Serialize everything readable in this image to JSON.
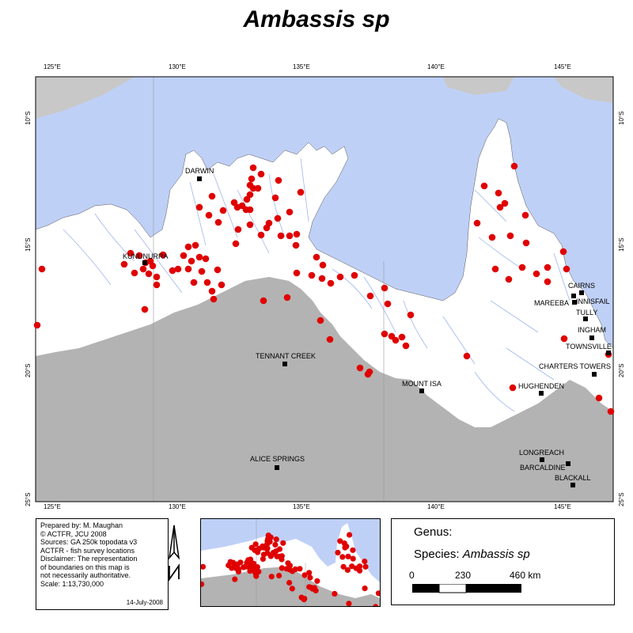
{
  "title": "Ambassis sp",
  "lon_ticks": [
    "125°E",
    "130°E",
    "135°E",
    "140°E",
    "145°E"
  ],
  "lat_ticks": [
    "10°S",
    "15°S",
    "20°S",
    "25°S"
  ],
  "towns": [
    {
      "name": "DARWIN"
    },
    {
      "name": "KUNUNURRA"
    },
    {
      "name": "TENNANT CREEK"
    },
    {
      "name": "ALICE SPRINGS"
    },
    {
      "name": "MOUNT ISA"
    },
    {
      "name": "CAIRNS"
    },
    {
      "name": "MAREEBA"
    },
    {
      "name": "INNISFAIL"
    },
    {
      "name": "TULLY"
    },
    {
      "name": "INGHAM"
    },
    {
      "name": "TOWNSVILLE"
    },
    {
      "name": "CHARTERS TOWERS"
    },
    {
      "name": "HUGHENDEN"
    },
    {
      "name": "LONGREACH"
    },
    {
      "name": "BARCALDINE"
    },
    {
      "name": "BLACKALL"
    }
  ],
  "credits": {
    "l1": "Prepared by: M. Maughan",
    "l2": "© ACTFR, JCU 2008",
    "l3": "Sources: GA 250k topodata v3",
    "l4": "ACTFR - fish survey locations",
    "l5": "Disclaimer: The representation",
    "l6": "of boundaries on this map is",
    "l7": "not necessarily authoritative.",
    "l8": "Scale: 1:13,730,000",
    "date": "14-July-2008"
  },
  "legend": {
    "genus_label": "Genus:",
    "species_label": "Species:",
    "species_value": "Ambassis sp",
    "scale_0": "0",
    "scale_1": "230",
    "scale_2": "460 km"
  },
  "colors": {
    "sea": "#bfd0f7",
    "land": "#ffffff",
    "inland": "#b3b3b3",
    "river": "#9db6ee",
    "record": "#e00000"
  },
  "records_count_note": ""
}
